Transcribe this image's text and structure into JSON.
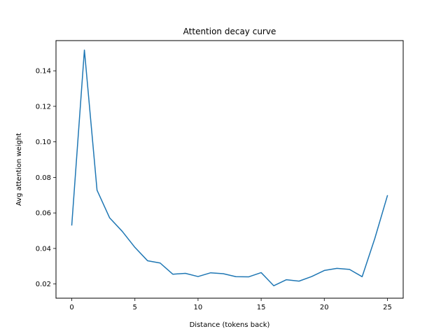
{
  "chart_data": {
    "type": "line",
    "title": "Attention decay curve",
    "xlabel": "Distance (tokens back)",
    "ylabel": "Avg attention weight",
    "xlim": [
      -1.25,
      26.25
    ],
    "ylim": [
      0.012,
      0.157
    ],
    "xticks": [
      0,
      5,
      10,
      15,
      20,
      25
    ],
    "xtick_labels": [
      "0",
      "5",
      "10",
      "15",
      "20",
      "25"
    ],
    "yticks": [
      0.02,
      0.04,
      0.06,
      0.08,
      0.1,
      0.12,
      0.14
    ],
    "ytick_labels": [
      "0.02",
      "0.04",
      "0.06",
      "0.08",
      "0.10",
      "0.12",
      "0.14"
    ],
    "grid": false,
    "series": [
      {
        "color": "#1f77b4",
        "x": [
          0,
          1,
          2,
          3,
          4,
          5,
          6,
          7,
          8,
          9,
          10,
          11,
          12,
          13,
          14,
          15,
          16,
          17,
          18,
          19,
          20,
          21,
          22,
          23,
          24,
          25
        ],
        "y": [
          0.0532,
          0.1517,
          0.0728,
          0.0572,
          0.0496,
          0.0406,
          0.0331,
          0.0318,
          0.0255,
          0.026,
          0.0242,
          0.0263,
          0.0258,
          0.0241,
          0.024,
          0.0264,
          0.019,
          0.0224,
          0.0216,
          0.0242,
          0.0276,
          0.0288,
          0.0282,
          0.0241,
          0.0456,
          0.0697
        ]
      }
    ]
  }
}
